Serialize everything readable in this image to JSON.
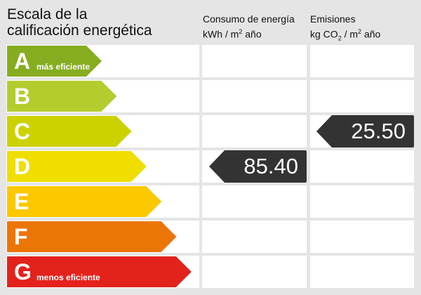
{
  "title_line1": "Escala de la",
  "title_line2": "calificación energética",
  "consumption_header": {
    "line1": "Consumo de energía",
    "unit_prefix": "kWh / m",
    "unit_exp": "2",
    "unit_suffix": " año"
  },
  "emissions_header": {
    "line1": "Emisiones",
    "unit_a": "kg CO",
    "unit_sub": "2",
    "unit_b": " / m",
    "unit_exp": "2",
    "unit_suffix": " año"
  },
  "ratings": [
    {
      "letter": "A",
      "label": "más eficiente",
      "color": "#86ad1f"
    },
    {
      "letter": "B",
      "label": "",
      "color": "#b5cc2e"
    },
    {
      "letter": "C",
      "label": "",
      "color": "#ccd200"
    },
    {
      "letter": "D",
      "label": "",
      "color": "#f0de00"
    },
    {
      "letter": "E",
      "label": "",
      "color": "#fcc800"
    },
    {
      "letter": "F",
      "label": "",
      "color": "#ec7507"
    },
    {
      "letter": "G",
      "label": "menos eficiente",
      "color": "#e3221c"
    }
  ],
  "consumption": {
    "value": "85.40",
    "rating": "D"
  },
  "emissions": {
    "value": "25.50",
    "rating": "C"
  },
  "marker_color": "#333333"
}
